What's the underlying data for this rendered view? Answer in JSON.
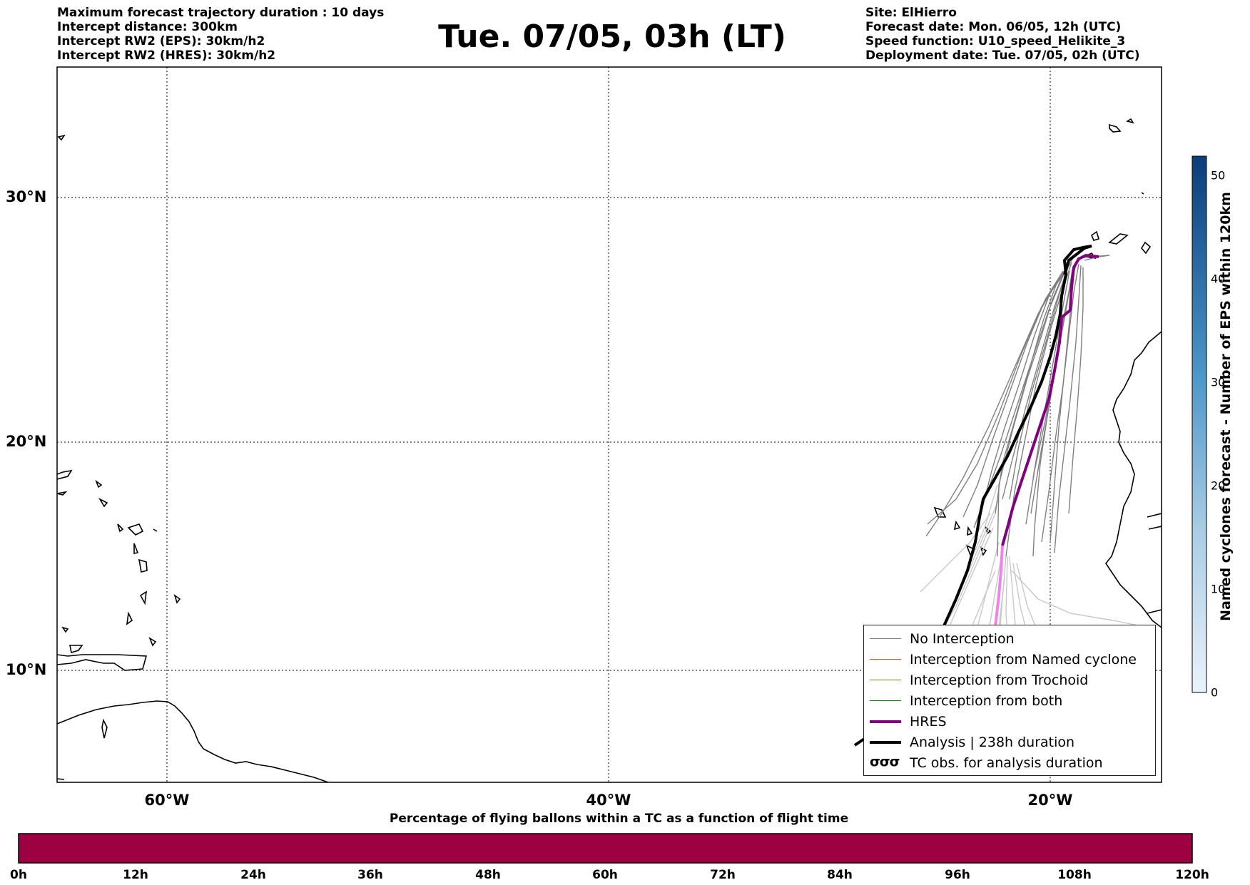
{
  "header_left": [
    "Maximum forecast trajectory duration : 10 days",
    "Intercept distance: 300km",
    "Intercept RW2 (EPS):  30km/h2",
    "Intercept RW2 (HRES): 30km/h2"
  ],
  "title": "Tue. 07/05, 03h (LT)",
  "header_right": [
    "Site: ElHierro",
    "Forecast date: Mon. 06/05, 12h (UTC)",
    "Speed function: U10_speed_Helikite_3",
    "Deployment date: Tue. 07/05, 02h (UTC)"
  ],
  "map": {
    "lat_labels": [
      "30°N",
      "20°N",
      "10°N"
    ],
    "lon_labels": [
      "60°W",
      "40°W",
      "20°W"
    ]
  },
  "legend": [
    {
      "label": "No Interception",
      "color": "#808080"
    },
    {
      "label": "Interception from Named cyclone",
      "color": "#ff4500"
    },
    {
      "label": "Interception from Trochoid",
      "color": "#808000"
    },
    {
      "label": "Interception from both",
      "color": "#008000"
    },
    {
      "label": "HRES",
      "color": "#800080"
    },
    {
      "label": "Analysis | 238h duration",
      "color": "#000000"
    },
    {
      "label": "TC obs. for analysis duration",
      "color": "#000000",
      "icon": "cyclone-symbols-icon"
    }
  ],
  "legend_icon_glyph": "σσσ",
  "colorbar_right": {
    "title": "Named cyclones forecast - Number of EPS within 120km",
    "ticks": [
      "0",
      "10",
      "20",
      "30",
      "40",
      "50"
    ]
  },
  "colorbar_bottom": {
    "title": "Percentage of flying ballons within a TC as a function of flight time",
    "ticks": [
      "0h",
      "12h",
      "24h",
      "36h",
      "48h",
      "60h",
      "72h",
      "84h",
      "96h",
      "108h",
      "120h"
    ],
    "fill_color": "#9e0142"
  }
}
